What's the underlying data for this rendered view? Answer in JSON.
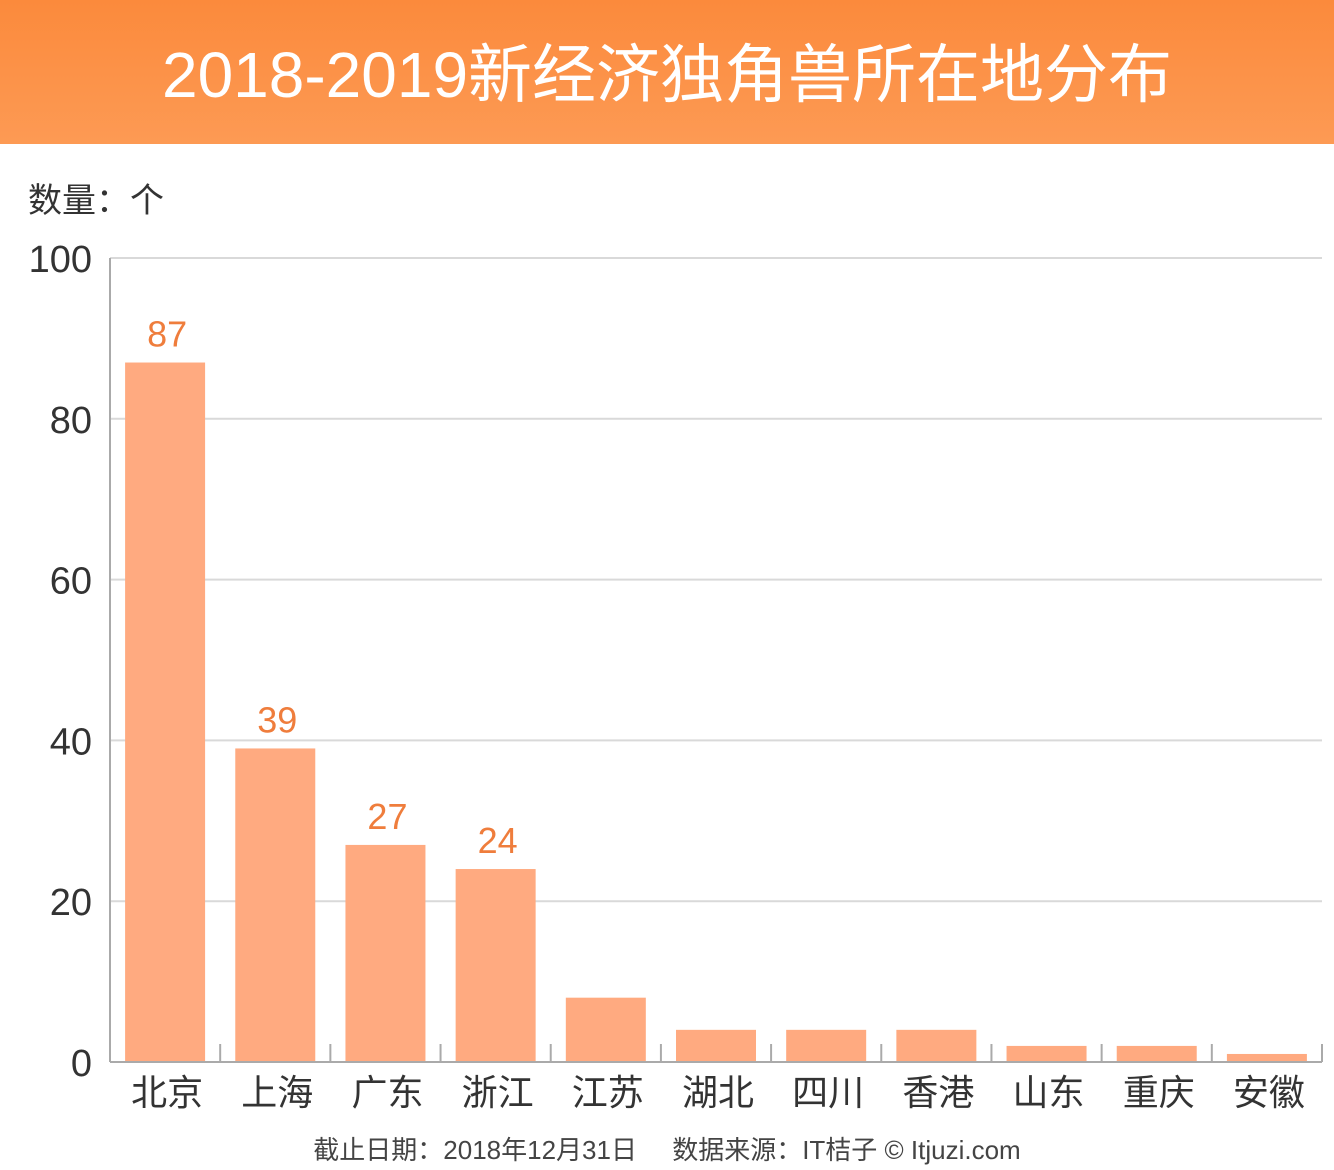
{
  "title": "2018-2019新经济独角兽所在地分布",
  "footer": {
    "date": "截止日期：2018年12月31日",
    "source": "数据来源：IT桔子 © Itjuzi.com"
  },
  "colors": {
    "bar": "#ffaa80",
    "label": "#ef7d3c",
    "grid": "#d9d9d9",
    "axis": "#aaaaaa",
    "text": "#333333"
  },
  "chart_data": {
    "type": "bar",
    "title": "2018-2019新经济独角兽所在地分布",
    "ylabel": "数量：个",
    "xlabel": "",
    "ylim": [
      0,
      100
    ],
    "yticks": [
      0,
      20,
      40,
      60,
      80,
      100
    ],
    "grid": true,
    "categories": [
      "北京",
      "上海",
      "广东",
      "浙江",
      "江苏",
      "湖北",
      "四川",
      "香港",
      "山东",
      "重庆",
      "安徽"
    ],
    "values": [
      87,
      39,
      27,
      24,
      8,
      4,
      4,
      4,
      2,
      2,
      1
    ],
    "data_labels": [
      87,
      39,
      27,
      24,
      null,
      null,
      null,
      null,
      null,
      null,
      null
    ]
  }
}
